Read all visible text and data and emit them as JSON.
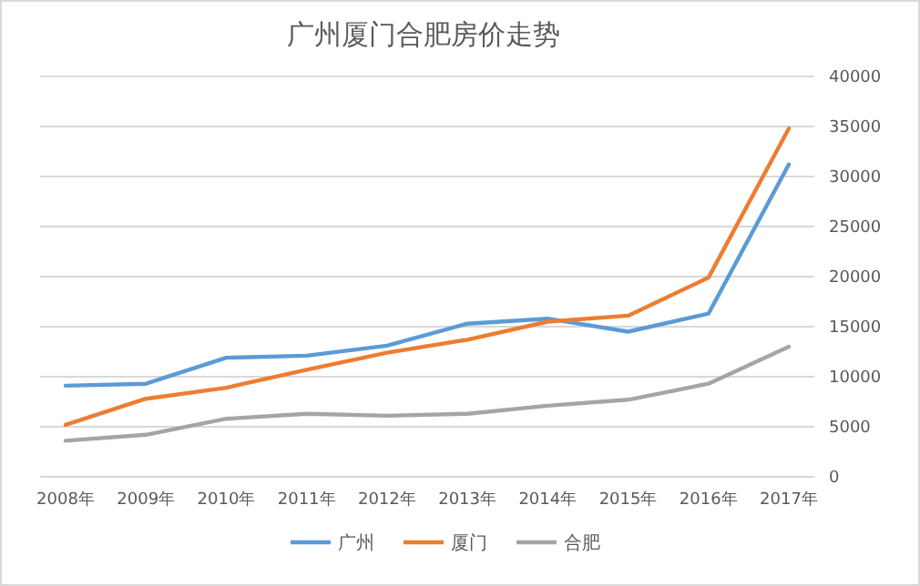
{
  "chart_data": {
    "type": "line",
    "title": "广州厦门合肥房价走势",
    "categories": [
      "2008年",
      "2009年",
      "2010年",
      "2011年",
      "2012年",
      "2013年",
      "2014年",
      "2015年",
      "2016年",
      "2017年"
    ],
    "series": [
      {
        "name": "广州",
        "color": "#5b9bd5",
        "values": [
          9100,
          9300,
          11900,
          12100,
          13100,
          15300,
          15800,
          14500,
          16300,
          31200
        ]
      },
      {
        "name": "厦门",
        "color": "#ed7d31",
        "values": [
          5200,
          7800,
          8900,
          10700,
          12400,
          13700,
          15500,
          16100,
          19900,
          34800
        ]
      },
      {
        "name": "合肥",
        "color": "#a5a5a5",
        "values": [
          3600,
          4200,
          5800,
          6300,
          6100,
          6300,
          7100,
          7700,
          9300,
          13000
        ]
      }
    ],
    "ylim": [
      0,
      40000
    ],
    "yticks": [
      0,
      5000,
      10000,
      15000,
      20000,
      25000,
      30000,
      35000,
      40000
    ],
    "grid": "y",
    "legend": "bottom",
    "marker": "none",
    "line_style": "solid"
  }
}
